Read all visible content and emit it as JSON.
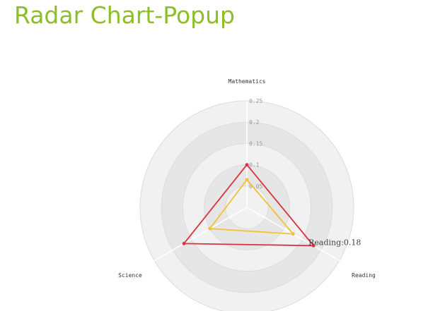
{
  "page": {
    "title": "Radar Chart-Popup"
  },
  "chart_data": {
    "type": "radar",
    "axes": [
      "Mathematics",
      "Reading",
      "Science"
    ],
    "ticks": [
      "0.05",
      "0.1",
      "0.15",
      "0.2",
      "0.25"
    ],
    "range": [
      0,
      0.25
    ],
    "grid": true,
    "series": [
      {
        "values": [
          0.1,
          0.18,
          0.17
        ],
        "color": "#d6333f"
      },
      {
        "values": [
          0.065,
          0.125,
          0.1
        ],
        "color": "#f1c232"
      }
    ],
    "tooltip": {
      "text": "Reading:0.18",
      "axis": "Reading",
      "series_index": 0
    },
    "colors": {
      "ring_dark": "#e6e6e6",
      "ring_light": "#f1f1f1",
      "ring_stroke": "#dcdcdc",
      "spoke": "#ffffff"
    }
  }
}
